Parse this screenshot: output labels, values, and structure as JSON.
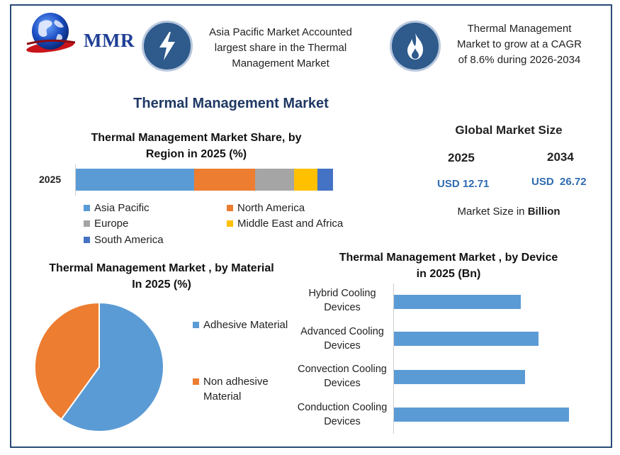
{
  "logo": {
    "text": "MMR"
  },
  "header": {
    "highlight_1": "Asia Pacific Market Accounted largest share in the Thermal Management Market",
    "highlight_2": "Thermal Management Market to grow at a CAGR of 8.6% during 2026-2034",
    "icon_1": "lightning-icon",
    "icon_2": "flame-icon"
  },
  "main_title": "Thermal Management Market",
  "global_market_size": {
    "title": "Global Market Size",
    "year_1": "2025",
    "year_2": "2034",
    "value_1": "USD 12.71",
    "value_2": "USD  26.72",
    "note_prefix": "Market Size in ",
    "note_unit": "Billion"
  },
  "colors": {
    "blue": "#5b9bd5",
    "orange": "#ed7d31",
    "gray": "#a5a5a5",
    "yellow": "#ffc000",
    "dark_blue": "#4472c4",
    "navy": "#1f3864",
    "frame": "#2b4a79"
  },
  "chart_data": [
    {
      "type": "bar",
      "orientation": "horizontal-stacked",
      "title": "Thermal Management Market  Share, by Region in 2025 (%)",
      "categories": [
        "2025"
      ],
      "series": [
        {
          "name": "Asia Pacific",
          "values": [
            42.5
          ],
          "color": "#5b9bd5"
        },
        {
          "name": "North America",
          "values": [
            22
          ],
          "color": "#ed7d31"
        },
        {
          "name": "Europe",
          "values": [
            14
          ],
          "color": "#a5a5a5"
        },
        {
          "name": "Middle East and Africa",
          "values": [
            8.5
          ],
          "color": "#ffc000"
        },
        {
          "name": "South America",
          "values": [
            5.5
          ],
          "color": "#4472c4"
        }
      ],
      "legend_position": "bottom"
    },
    {
      "type": "pie",
      "title": "Thermal Management Market , by Material In 2025 (%)",
      "slices": [
        {
          "name": "Adhesive Material",
          "value": 60,
          "color": "#5b9bd5"
        },
        {
          "name": "Non adhesive Material",
          "value": 40,
          "color": "#ed7d31"
        }
      ],
      "legend_position": "right"
    },
    {
      "type": "bar",
      "orientation": "horizontal",
      "title": "Thermal Management Market , by Device in 2025 (Bn)",
      "categories": [
        "Hybrid Cooling Devices",
        "Advanced Cooling Devices",
        "Convection Cooling Devices",
        "Conduction Cooling Devices"
      ],
      "values": [
        2.9,
        3.3,
        3.0,
        4.0
      ],
      "xlim": [
        0,
        4.5
      ],
      "color": "#5b9bd5"
    }
  ]
}
